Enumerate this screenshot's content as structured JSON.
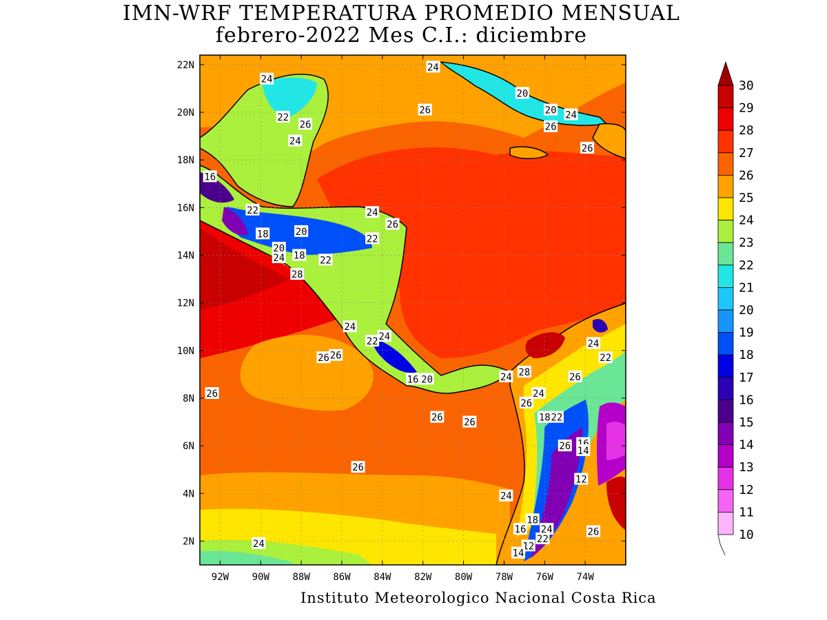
{
  "title_line1": "IMN-WRF  TEMPERATURA PROMEDIO MENSUAL",
  "title_line2": "febrero-2022 Mes C.I.: diciembre",
  "credit": "Instituto Meteorologico Nacional Costa Rica",
  "map": {
    "lon_range": [
      -93,
      -72
    ],
    "lat_range": [
      1,
      22.4
    ],
    "lon_ticks": [
      "92W",
      "90W",
      "88W",
      "86W",
      "84W",
      "82W",
      "80W",
      "78W",
      "76W",
      "74W"
    ],
    "lat_ticks": [
      "22N",
      "20N",
      "18N",
      "16N",
      "14N",
      "12N",
      "10N",
      "8N",
      "6N",
      "4N",
      "2N"
    ],
    "contour_labels": [
      {
        "text": "24",
        "lon": -89.7,
        "lat": 21.4
      },
      {
        "text": "24",
        "lon": -81.5,
        "lat": 21.9
      },
      {
        "text": "20",
        "lon": -77.1,
        "lat": 20.8
      },
      {
        "text": "20",
        "lon": -75.7,
        "lat": 20.1
      },
      {
        "text": "24",
        "lon": -74.7,
        "lat": 19.9
      },
      {
        "text": "26",
        "lon": -81.9,
        "lat": 20.1
      },
      {
        "text": "26",
        "lon": -75.7,
        "lat": 19.4
      },
      {
        "text": "26",
        "lon": -73.9,
        "lat": 18.5
      },
      {
        "text": "22",
        "lon": -88.9,
        "lat": 19.8
      },
      {
        "text": "26",
        "lon": -87.8,
        "lat": 19.5
      },
      {
        "text": "24",
        "lon": -88.3,
        "lat": 18.8
      },
      {
        "text": "16",
        "lon": -92.5,
        "lat": 17.3
      },
      {
        "text": "22",
        "lon": -90.4,
        "lat": 15.9
      },
      {
        "text": "18",
        "lon": -89.9,
        "lat": 14.9
      },
      {
        "text": "20",
        "lon": -88.0,
        "lat": 15.0
      },
      {
        "text": "20",
        "lon": -89.1,
        "lat": 14.3
      },
      {
        "text": "24",
        "lon": -89.1,
        "lat": 13.9
      },
      {
        "text": "18",
        "lon": -88.1,
        "lat": 14.0
      },
      {
        "text": "22",
        "lon": -86.8,
        "lat": 13.8
      },
      {
        "text": "28",
        "lon": -88.2,
        "lat": 13.2
      },
      {
        "text": "24",
        "lon": -84.5,
        "lat": 15.8
      },
      {
        "text": "26",
        "lon": -83.5,
        "lat": 15.3
      },
      {
        "text": "22",
        "lon": -84.5,
        "lat": 14.7
      },
      {
        "text": "24",
        "lon": -85.6,
        "lat": 11.0
      },
      {
        "text": "22",
        "lon": -84.5,
        "lat": 10.4
      },
      {
        "text": "24",
        "lon": -83.9,
        "lat": 10.6
      },
      {
        "text": "26",
        "lon": -86.9,
        "lat": 9.7
      },
      {
        "text": "26",
        "lon": -86.3,
        "lat": 9.8
      },
      {
        "text": "16",
        "lon": -82.5,
        "lat": 8.8
      },
      {
        "text": "20",
        "lon": -81.8,
        "lat": 8.8
      },
      {
        "text": "24",
        "lon": -77.9,
        "lat": 8.9
      },
      {
        "text": "28",
        "lon": -77.0,
        "lat": 9.1
      },
      {
        "text": "26",
        "lon": -74.5,
        "lat": 8.9
      },
      {
        "text": "24",
        "lon": -76.3,
        "lat": 8.2
      },
      {
        "text": "26",
        "lon": -76.9,
        "lat": 7.8
      },
      {
        "text": "26",
        "lon": -81.3,
        "lat": 7.2
      },
      {
        "text": "26",
        "lon": -79.7,
        "lat": 7.0
      },
      {
        "text": "18",
        "lon": -76.0,
        "lat": 7.2
      },
      {
        "text": "22",
        "lon": -75.4,
        "lat": 7.2
      },
      {
        "text": "26",
        "lon": -75.0,
        "lat": 6.0
      },
      {
        "text": "16",
        "lon": -74.1,
        "lat": 6.1
      },
      {
        "text": "14",
        "lon": -74.1,
        "lat": 5.8
      },
      {
        "text": "24",
        "lon": -73.6,
        "lat": 10.3
      },
      {
        "text": "22",
        "lon": -73.0,
        "lat": 9.7
      },
      {
        "text": "26",
        "lon": -92.4,
        "lat": 8.2
      },
      {
        "text": "26",
        "lon": -85.2,
        "lat": 5.1
      },
      {
        "text": "12",
        "lon": -74.2,
        "lat": 4.6
      },
      {
        "text": "24",
        "lon": -77.9,
        "lat": 3.9
      },
      {
        "text": "18",
        "lon": -76.6,
        "lat": 2.9
      },
      {
        "text": "16",
        "lon": -77.2,
        "lat": 2.5
      },
      {
        "text": "24",
        "lon": -75.9,
        "lat": 2.5
      },
      {
        "text": "22",
        "lon": -76.1,
        "lat": 2.1
      },
      {
        "text": "26",
        "lon": -73.6,
        "lat": 2.4
      },
      {
        "text": "12",
        "lon": -76.8,
        "lat": 1.8
      },
      {
        "text": "14",
        "lon": -77.3,
        "lat": 1.5
      },
      {
        "text": "24",
        "lon": -90.1,
        "lat": 1.9
      }
    ]
  },
  "colorbar": {
    "labels": [
      "30",
      "29",
      "28",
      "27",
      "26",
      "25",
      "24",
      "23",
      "22",
      "21",
      "20",
      "19",
      "18",
      "17",
      "16",
      "15",
      "14",
      "13",
      "12",
      "11",
      "10"
    ],
    "colors": [
      "#a00000",
      "#c80000",
      "#ef0000",
      "#ff3200",
      "#fa6400",
      "#ffa200",
      "#ffe600",
      "#aaf03c",
      "#6ae696",
      "#22e6e6",
      "#1ec6fa",
      "#1696fa",
      "#0050fa",
      "#0000e6",
      "#2d00b4",
      "#4b008c",
      "#8200b4",
      "#b400c8",
      "#e632e6",
      "#f564f5",
      "#ffb4ff"
    ]
  }
}
